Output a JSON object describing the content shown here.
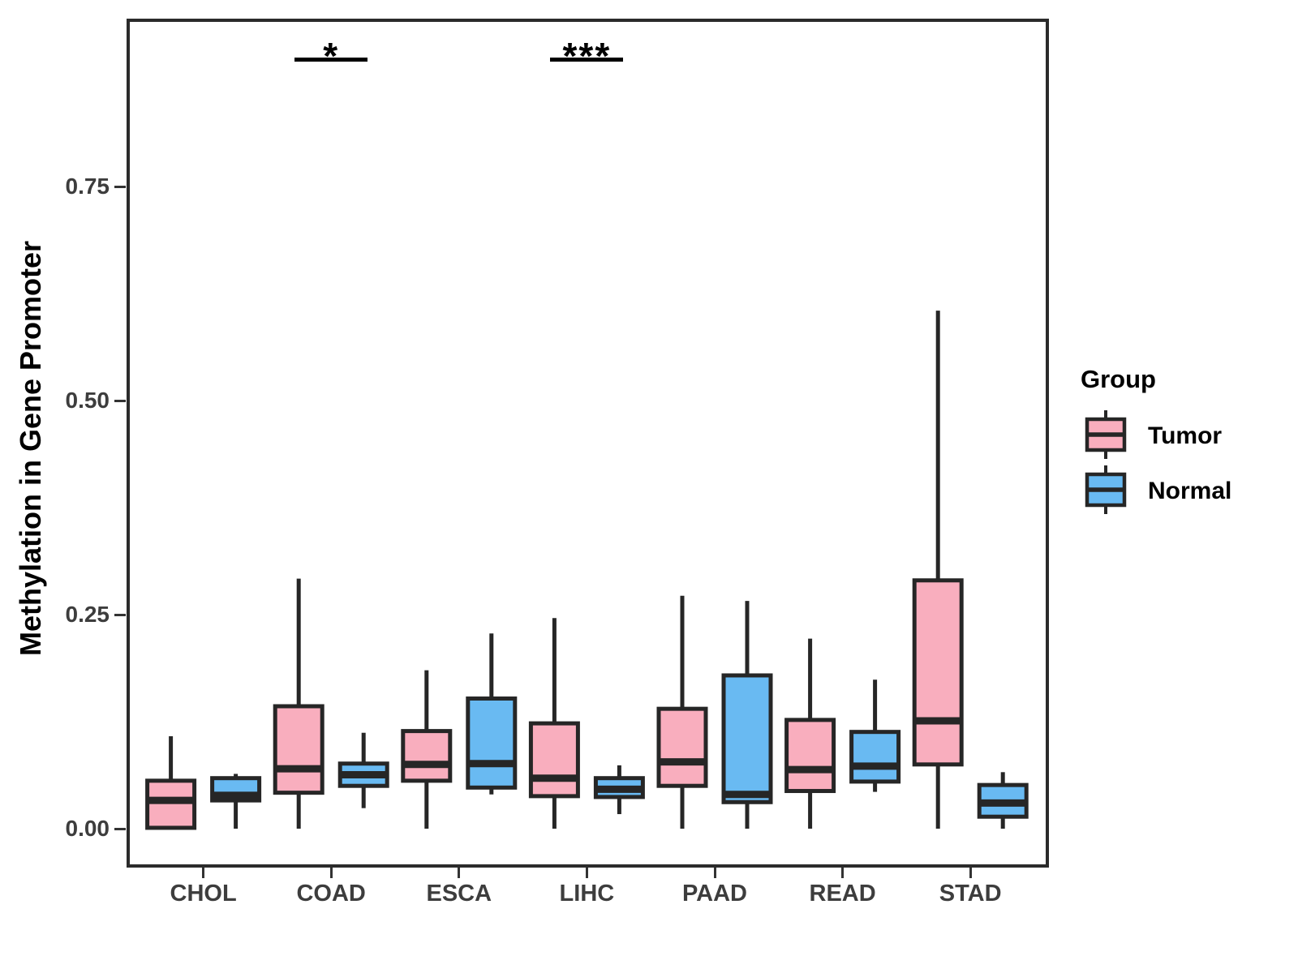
{
  "figure": {
    "background": "#ffffff",
    "y_axis": {
      "title": "Methylation in Gene Promoter",
      "ticks": [
        {
          "label": "0.00",
          "value": 0.0
        },
        {
          "label": "0.25",
          "value": 0.25
        },
        {
          "label": "0.50",
          "value": 0.5
        },
        {
          "label": "0.75",
          "value": 0.75
        }
      ]
    },
    "x_axis": {
      "categories": [
        "CHOL",
        "COAD",
        "ESCA",
        "LIHC",
        "PAAD",
        "READ",
        "STAD"
      ]
    },
    "legend": {
      "title": "Group",
      "entries": [
        {
          "label": "Tumor",
          "color": "#F9AEBE"
        },
        {
          "label": "Normal",
          "color": "#69BAF2"
        }
      ]
    }
  },
  "chart_data": {
    "type": "boxplot",
    "title": "",
    "xlabel": "",
    "ylabel": "Methylation in Gene Promoter",
    "categories": [
      "CHOL",
      "COAD",
      "ESCA",
      "LIHC",
      "PAAD",
      "READ",
      "STAD"
    ],
    "ylim": [
      -0.045,
      0.946
    ],
    "yticks": [
      0.0,
      0.25,
      0.5,
      0.75
    ],
    "grid": false,
    "legend_position": "right",
    "box_outline_color": "#262626",
    "series": [
      {
        "name": "Tumor",
        "color": "#F9AEBE",
        "boxes": [
          {
            "category": "CHOL",
            "min": 0.0,
            "q1": 0.001,
            "median": 0.033,
            "q3": 0.056,
            "max": 0.108
          },
          {
            "category": "COAD",
            "min": 0.0,
            "q1": 0.042,
            "median": 0.07,
            "q3": 0.143,
            "max": 0.292
          },
          {
            "category": "ESCA",
            "min": 0.0,
            "q1": 0.056,
            "median": 0.075,
            "q3": 0.114,
            "max": 0.185
          },
          {
            "category": "LIHC",
            "min": 0.0,
            "q1": 0.038,
            "median": 0.059,
            "q3": 0.123,
            "max": 0.246
          },
          {
            "category": "PAAD",
            "min": 0.0,
            "q1": 0.05,
            "median": 0.078,
            "q3": 0.14,
            "max": 0.272
          },
          {
            "category": "READ",
            "min": 0.0,
            "q1": 0.044,
            "median": 0.069,
            "q3": 0.127,
            "max": 0.222
          },
          {
            "category": "STAD",
            "min": 0.0,
            "q1": 0.075,
            "median": 0.126,
            "q3": 0.29,
            "max": 0.605
          }
        ]
      },
      {
        "name": "Normal",
        "color": "#69BAF2",
        "boxes": [
          {
            "category": "CHOL",
            "min": 0.0,
            "q1": 0.033,
            "median": 0.039,
            "q3": 0.059,
            "max": 0.064
          },
          {
            "category": "COAD",
            "min": 0.024,
            "q1": 0.05,
            "median": 0.063,
            "q3": 0.076,
            "max": 0.112
          },
          {
            "category": "ESCA",
            "min": 0.04,
            "q1": 0.048,
            "median": 0.076,
            "q3": 0.152,
            "max": 0.228
          },
          {
            "category": "LIHC",
            "min": 0.017,
            "q1": 0.037,
            "median": 0.046,
            "q3": 0.059,
            "max": 0.074
          },
          {
            "category": "PAAD",
            "min": 0.0,
            "q1": 0.031,
            "median": 0.04,
            "q3": 0.179,
            "max": 0.266
          },
          {
            "category": "READ",
            "min": 0.043,
            "q1": 0.055,
            "median": 0.073,
            "q3": 0.113,
            "max": 0.174
          },
          {
            "category": "STAD",
            "min": 0.0,
            "q1": 0.014,
            "median": 0.03,
            "q3": 0.051,
            "max": 0.066
          }
        ]
      }
    ],
    "annotations": [
      {
        "category": "COAD",
        "label": "*",
        "bar_value": 0.898
      },
      {
        "category": "LIHC",
        "label": "***",
        "bar_value": 0.898
      }
    ]
  }
}
